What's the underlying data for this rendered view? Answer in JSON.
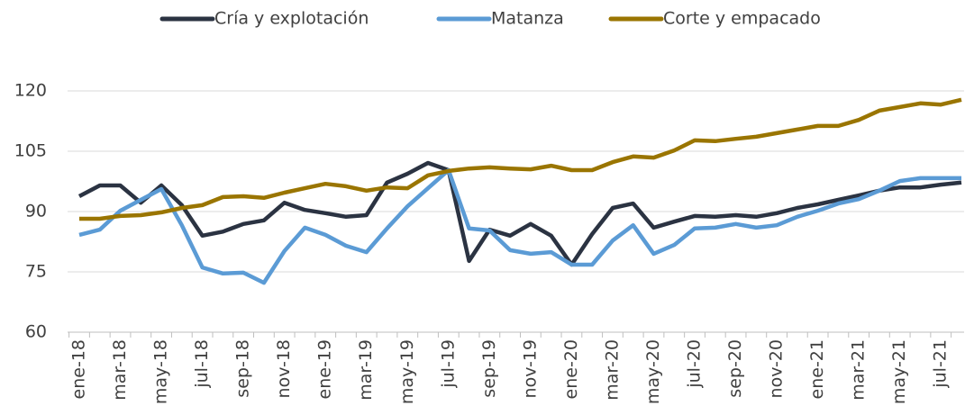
{
  "chart_data": {
    "type": "line",
    "categories": [
      "ene-18",
      null,
      "mar-18",
      null,
      "may-18",
      null,
      "jul-18",
      null,
      "sep-18",
      null,
      "nov-18",
      null,
      "ene-19",
      null,
      "mar-19",
      null,
      "may-19",
      null,
      "jul-19",
      null,
      "sep-19",
      null,
      "nov-19",
      null,
      "ene-20",
      null,
      "mar-20",
      null,
      "may-20",
      null,
      "jul-20",
      null,
      "sep-20",
      null,
      "nov-20",
      null,
      "ene-21",
      null,
      "mar-21",
      null,
      "may-21",
      null,
      "jul-21",
      null
    ],
    "series": [
      {
        "name": "Cría y explotación",
        "color": "#2b3342",
        "values": [
          93.8,
          96.5,
          96.5,
          92.2,
          96.5,
          91.6,
          84,
          85,
          86.9,
          87.8,
          92.2,
          90.4,
          89.6,
          88.7,
          89.1,
          97.2,
          99.4,
          102.1,
          100.3,
          77.7,
          85.5,
          84,
          86.9,
          84,
          76.8,
          84.4,
          90.9,
          92,
          86,
          87.5,
          88.9,
          88.7,
          89.1,
          88.7,
          89.6,
          90.9,
          91.8,
          92.9,
          94,
          95.2,
          96,
          96,
          96.7,
          97.2
        ]
      },
      {
        "name": "Matanza",
        "color": "#5b9bd5",
        "values": [
          84.2,
          85.5,
          90.2,
          92.9,
          95.6,
          86.6,
          76.1,
          74.6,
          74.8,
          72.3,
          80.2,
          86,
          84.2,
          81.5,
          79.9,
          85.8,
          91.3,
          95.8,
          100.3,
          85.8,
          85.3,
          80.4,
          79.5,
          79.9,
          76.8,
          76.8,
          82.8,
          86.6,
          79.5,
          81.7,
          85.8,
          86,
          86.9,
          86,
          86.6,
          88.7,
          90.2,
          92,
          93.1,
          95.2,
          97.6,
          98.3,
          98.3,
          98.3
        ]
      },
      {
        "name": "Corte y empacado",
        "color": "#9a7500",
        "values": [
          88.2,
          88.2,
          88.9,
          89.1,
          89.8,
          90.9,
          91.6,
          93.6,
          93.8,
          93.4,
          94.7,
          95.8,
          96.9,
          96.3,
          95.2,
          96,
          95.8,
          99,
          100.1,
          100.7,
          101,
          100.7,
          100.5,
          101.4,
          100.3,
          100.3,
          102.3,
          103.7,
          103.4,
          105.2,
          107.7,
          107.5,
          108.1,
          108.6,
          109.5,
          110.4,
          111.3,
          111.3,
          112.8,
          115.1,
          116,
          116.9,
          116.6,
          117.8
        ]
      }
    ],
    "ylim": [
      60,
      120
    ],
    "yticks": [
      60,
      75,
      90,
      105,
      120
    ],
    "grid": true
  }
}
